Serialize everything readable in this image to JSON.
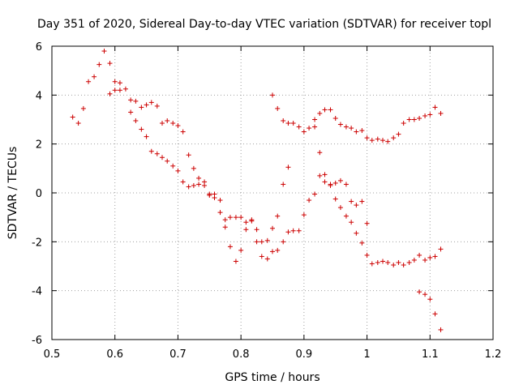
{
  "chart_data": {
    "type": "scatter",
    "title": "Day 351 of 2020, Sidereal Day-to-day VTEC variation (SDTVAR) for receiver topl",
    "xlabel": "GPS time / hours",
    "ylabel": "SDTVAR / TECUs",
    "xlim": [
      0.5,
      1.2
    ],
    "ylim": [
      -6,
      6
    ],
    "xticks": [
      "0.5",
      "0.6",
      "0.7",
      "0.8",
      "0.9",
      "1",
      "1.1",
      "1.2"
    ],
    "yticks": [
      "-6",
      "-4",
      "-2",
      "0",
      "2",
      "4",
      "6"
    ],
    "grid": true,
    "marker": "+",
    "series_color": "#cc0000",
    "series": [
      {
        "name": "SDTVAR",
        "points": [
          [
            0.533,
            3.1
          ],
          [
            0.542,
            2.85
          ],
          [
            0.55,
            3.45
          ],
          [
            0.558,
            4.55
          ],
          [
            0.567,
            4.75
          ],
          [
            0.575,
            5.25
          ],
          [
            0.583,
            5.8
          ],
          [
            0.592,
            5.3
          ],
          [
            0.592,
            4.05
          ],
          [
            0.6,
            4.55
          ],
          [
            0.6,
            4.2
          ],
          [
            0.608,
            4.5
          ],
          [
            0.608,
            4.2
          ],
          [
            0.617,
            4.25
          ],
          [
            0.625,
            3.8
          ],
          [
            0.625,
            3.3
          ],
          [
            0.633,
            3.75
          ],
          [
            0.633,
            2.95
          ],
          [
            0.642,
            3.5
          ],
          [
            0.642,
            2.6
          ],
          [
            0.65,
            3.6
          ],
          [
            0.65,
            2.3
          ],
          [
            0.658,
            3.7
          ],
          [
            0.658,
            1.7
          ],
          [
            0.667,
            3.55
          ],
          [
            0.667,
            1.6
          ],
          [
            0.675,
            2.85
          ],
          [
            0.675,
            1.45
          ],
          [
            0.683,
            2.95
          ],
          [
            0.683,
            1.3
          ],
          [
            0.692,
            2.85
          ],
          [
            0.692,
            1.1
          ],
          [
            0.7,
            2.75
          ],
          [
            0.7,
            0.9
          ],
          [
            0.708,
            2.5
          ],
          [
            0.708,
            0.45
          ],
          [
            0.717,
            1.55
          ],
          [
            0.717,
            0.25
          ],
          [
            0.725,
            1.0
          ],
          [
            0.725,
            0.3
          ],
          [
            0.733,
            0.6
          ],
          [
            0.733,
            0.35
          ],
          [
            0.742,
            0.45
          ],
          [
            0.742,
            0.3
          ],
          [
            0.75,
            -0.05
          ],
          [
            0.75,
            -0.1
          ],
          [
            0.758,
            -0.05
          ],
          [
            0.758,
            -0.2
          ],
          [
            0.767,
            -0.3
          ],
          [
            0.767,
            -0.8
          ],
          [
            0.775,
            -1.1
          ],
          [
            0.775,
            -1.4
          ],
          [
            0.783,
            -1.0
          ],
          [
            0.783,
            -2.2
          ],
          [
            0.792,
            -1.0
          ],
          [
            0.792,
            -2.8
          ],
          [
            0.8,
            -1.0
          ],
          [
            0.8,
            -2.35
          ],
          [
            0.808,
            -1.2
          ],
          [
            0.808,
            -1.5
          ],
          [
            0.817,
            -1.15
          ],
          [
            0.817,
            -1.1
          ],
          [
            0.825,
            -1.5
          ],
          [
            0.825,
            -2.0
          ],
          [
            0.833,
            -2.0
          ],
          [
            0.833,
            -2.6
          ],
          [
            0.842,
            -1.95
          ],
          [
            0.842,
            -2.7
          ],
          [
            0.85,
            -2.4
          ],
          [
            0.85,
            -1.45
          ],
          [
            0.85,
            4.0
          ],
          [
            0.858,
            3.45
          ],
          [
            0.858,
            -0.95
          ],
          [
            0.858,
            -2.35
          ],
          [
            0.867,
            2.95
          ],
          [
            0.867,
            0.35
          ],
          [
            0.867,
            -2.0
          ],
          [
            0.875,
            2.85
          ],
          [
            0.875,
            1.05
          ],
          [
            0.875,
            -1.6
          ],
          [
            0.883,
            2.85
          ],
          [
            0.883,
            -1.55
          ],
          [
            0.892,
            2.7
          ],
          [
            0.892,
            -1.55
          ],
          [
            0.9,
            2.5
          ],
          [
            0.9,
            -0.9
          ],
          [
            0.908,
            2.65
          ],
          [
            0.908,
            -0.3
          ],
          [
            0.917,
            2.7
          ],
          [
            0.917,
            -0.05
          ],
          [
            0.917,
            3.0
          ],
          [
            0.925,
            3.25
          ],
          [
            0.925,
            1.65
          ],
          [
            0.925,
            0.7
          ],
          [
            0.933,
            3.4
          ],
          [
            0.933,
            0.75
          ],
          [
            0.933,
            0.45
          ],
          [
            0.942,
            3.4
          ],
          [
            0.942,
            0.3
          ],
          [
            0.942,
            0.35
          ],
          [
            0.95,
            3.05
          ],
          [
            0.95,
            0.4
          ],
          [
            0.95,
            -0.25
          ],
          [
            0.958,
            2.8
          ],
          [
            0.958,
            0.5
          ],
          [
            0.958,
            -0.6
          ],
          [
            0.967,
            2.7
          ],
          [
            0.967,
            0.35
          ],
          [
            0.967,
            -0.95
          ],
          [
            0.975,
            2.65
          ],
          [
            0.975,
            -0.35
          ],
          [
            0.975,
            -1.2
          ],
          [
            0.983,
            2.5
          ],
          [
            0.983,
            -0.5
          ],
          [
            0.983,
            -1.65
          ],
          [
            0.992,
            2.55
          ],
          [
            0.992,
            -0.35
          ],
          [
            0.992,
            -2.05
          ],
          [
            1.0,
            2.25
          ],
          [
            1.0,
            -1.25
          ],
          [
            1.0,
            -2.55
          ],
          [
            1.008,
            2.15
          ],
          [
            1.008,
            -2.9
          ],
          [
            1.017,
            2.2
          ],
          [
            1.017,
            -2.85
          ],
          [
            1.025,
            2.15
          ],
          [
            1.025,
            -2.8
          ],
          [
            1.033,
            2.1
          ],
          [
            1.033,
            -2.85
          ],
          [
            1.042,
            2.25
          ],
          [
            1.042,
            -2.95
          ],
          [
            1.05,
            2.4
          ],
          [
            1.05,
            -2.85
          ],
          [
            1.058,
            2.85
          ],
          [
            1.058,
            -2.95
          ],
          [
            1.067,
            3.0
          ],
          [
            1.067,
            -2.85
          ],
          [
            1.075,
            3.0
          ],
          [
            1.075,
            -2.75
          ],
          [
            1.083,
            3.05
          ],
          [
            1.083,
            -2.55
          ],
          [
            1.083,
            -4.05
          ],
          [
            1.092,
            3.15
          ],
          [
            1.092,
            -2.75
          ],
          [
            1.092,
            -4.15
          ],
          [
            1.1,
            3.2
          ],
          [
            1.1,
            -2.65
          ],
          [
            1.1,
            -4.35
          ],
          [
            1.108,
            3.5
          ],
          [
            1.108,
            -2.6
          ],
          [
            1.108,
            -4.95
          ],
          [
            1.117,
            3.25
          ],
          [
            1.117,
            -2.3
          ],
          [
            1.117,
            -5.6
          ]
        ]
      }
    ]
  }
}
